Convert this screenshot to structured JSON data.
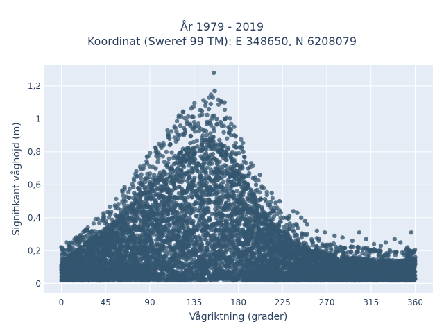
{
  "chart_data": {
    "type": "scatter",
    "title_lines": [
      "År 1979 - 2019",
      "Koordinat (Sweref 99 TM): E 348650, N 6208079"
    ],
    "xlabel": "Vågriktning (grader)",
    "ylabel": "Signifikant våghöjd (m)",
    "xlim": [
      -18,
      378
    ],
    "ylim": [
      -0.06,
      1.33
    ],
    "x_ticks": [
      0,
      45,
      90,
      135,
      180,
      225,
      270,
      315,
      360
    ],
    "x_tick_labels": [
      "0",
      "45",
      "90",
      "135",
      "180",
      "225",
      "270",
      "315",
      "360"
    ],
    "y_ticks": [
      0,
      0.2,
      0.4,
      0.6,
      0.8,
      1.0,
      1.2
    ],
    "y_tick_labels": [
      "0",
      "0,2",
      "0,4",
      "0,6",
      "0,8",
      "1",
      "1,2"
    ],
    "grid": true,
    "marker_color": "#34566f",
    "envelope_upper": [
      [
        0,
        0.15
      ],
      [
        10,
        0.18
      ],
      [
        20,
        0.22
      ],
      [
        30,
        0.28
      ],
      [
        40,
        0.31
      ],
      [
        50,
        0.36
      ],
      [
        60,
        0.42
      ],
      [
        70,
        0.48
      ],
      [
        80,
        0.56
      ],
      [
        90,
        0.61
      ],
      [
        100,
        0.66
      ],
      [
        110,
        0.74
      ],
      [
        120,
        0.8
      ],
      [
        130,
        0.85
      ],
      [
        140,
        0.88
      ],
      [
        150,
        0.9
      ],
      [
        155,
        0.92
      ],
      [
        160,
        0.88
      ],
      [
        170,
        0.82
      ],
      [
        180,
        0.72
      ],
      [
        190,
        0.6
      ],
      [
        200,
        0.5
      ],
      [
        210,
        0.42
      ],
      [
        220,
        0.36
      ],
      [
        230,
        0.3
      ],
      [
        240,
        0.26
      ],
      [
        250,
        0.22
      ],
      [
        260,
        0.2
      ],
      [
        270,
        0.18
      ],
      [
        290,
        0.16
      ],
      [
        310,
        0.15
      ],
      [
        330,
        0.14
      ],
      [
        345,
        0.14
      ],
      [
        360,
        0.15
      ]
    ],
    "envelope_lower": 0.02,
    "outliers": [
      [
        155,
        1.28
      ],
      [
        156,
        1.17
      ],
      [
        154,
        1.13
      ],
      [
        150,
        1.06
      ],
      [
        152,
        1.09
      ],
      [
        166,
        1.1
      ],
      [
        158,
        1.0
      ],
      [
        162,
        0.98
      ],
      [
        163,
        0.96
      ],
      [
        148,
        0.97
      ],
      [
        170,
        0.95
      ],
      [
        176,
        0.9
      ],
      [
        128,
        0.97
      ],
      [
        126,
        0.93
      ],
      [
        131,
        0.96
      ],
      [
        183,
        0.83
      ],
      [
        186,
        0.77
      ],
      [
        190,
        0.7
      ],
      [
        202,
        0.66
      ],
      [
        198,
        0.6
      ],
      [
        110,
        0.88
      ],
      [
        104,
        0.84
      ],
      [
        87,
        0.77
      ],
      [
        82,
        0.6
      ],
      [
        78,
        0.58
      ],
      [
        65,
        0.5
      ],
      [
        57,
        0.41
      ],
      [
        50,
        0.42
      ],
      [
        45,
        0.33
      ],
      [
        24,
        0.32
      ],
      [
        15,
        0.28
      ],
      [
        5,
        0.25
      ],
      [
        0,
        0.22
      ],
      [
        210,
        0.48
      ],
      [
        218,
        0.49
      ],
      [
        222,
        0.5
      ],
      [
        236,
        0.44
      ],
      [
        240,
        0.43
      ],
      [
        244,
        0.4
      ],
      [
        248,
        0.38
      ],
      [
        250,
        0.36
      ],
      [
        260,
        0.32
      ],
      [
        268,
        0.31
      ],
      [
        278,
        0.29
      ],
      [
        286,
        0.28
      ],
      [
        303,
        0.31
      ],
      [
        318,
        0.24
      ],
      [
        330,
        0.25
      ],
      [
        339,
        0.27
      ],
      [
        345,
        0.25
      ],
      [
        356,
        0.31
      ],
      [
        360,
        0.16
      ],
      [
        232,
        0.41
      ],
      [
        226,
        0.4
      ],
      [
        214,
        0.55
      ],
      [
        195,
        0.64
      ],
      [
        185,
        0.8
      ],
      [
        140,
        0.95
      ],
      [
        145,
        0.93
      ],
      [
        120,
        0.9
      ],
      [
        96,
        0.7
      ],
      [
        74,
        0.55
      ],
      [
        35,
        0.3
      ],
      [
        28,
        0.27
      ],
      [
        296,
        0.26
      ],
      [
        310,
        0.27
      ],
      [
        325,
        0.23
      ],
      [
        352,
        0.22
      ],
      [
        3,
        0.2
      ]
    ]
  }
}
